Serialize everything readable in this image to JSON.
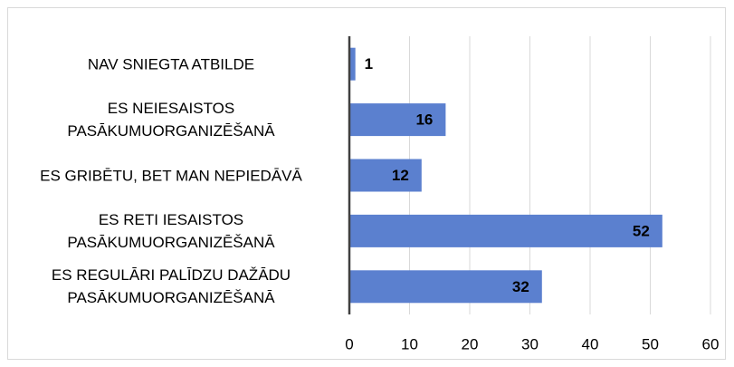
{
  "chart_data": {
    "type": "bar",
    "orientation": "horizontal",
    "categories": [
      "NAV SNIEGTA ATBILDE",
      "ES NEIESAISTOS PASĀKUMUORGANIZĒŠANĀ",
      "ES GRIBĒTU, BET MAN NEPIEDĀVĀ",
      "ES RETI IESAISTOS PASĀKUMUORGANIZĒŠANĀ",
      "ES REGULĀRI PALĪDZU DAŽĀDU PASĀKUMUORGANIZĒŠANĀ"
    ],
    "values": [
      1,
      16,
      12,
      52,
      32
    ],
    "color": "#5b80cf",
    "xlim": [
      0,
      60
    ],
    "xticks": [
      0,
      10,
      20,
      30,
      40,
      50,
      60
    ],
    "grid": true
  }
}
